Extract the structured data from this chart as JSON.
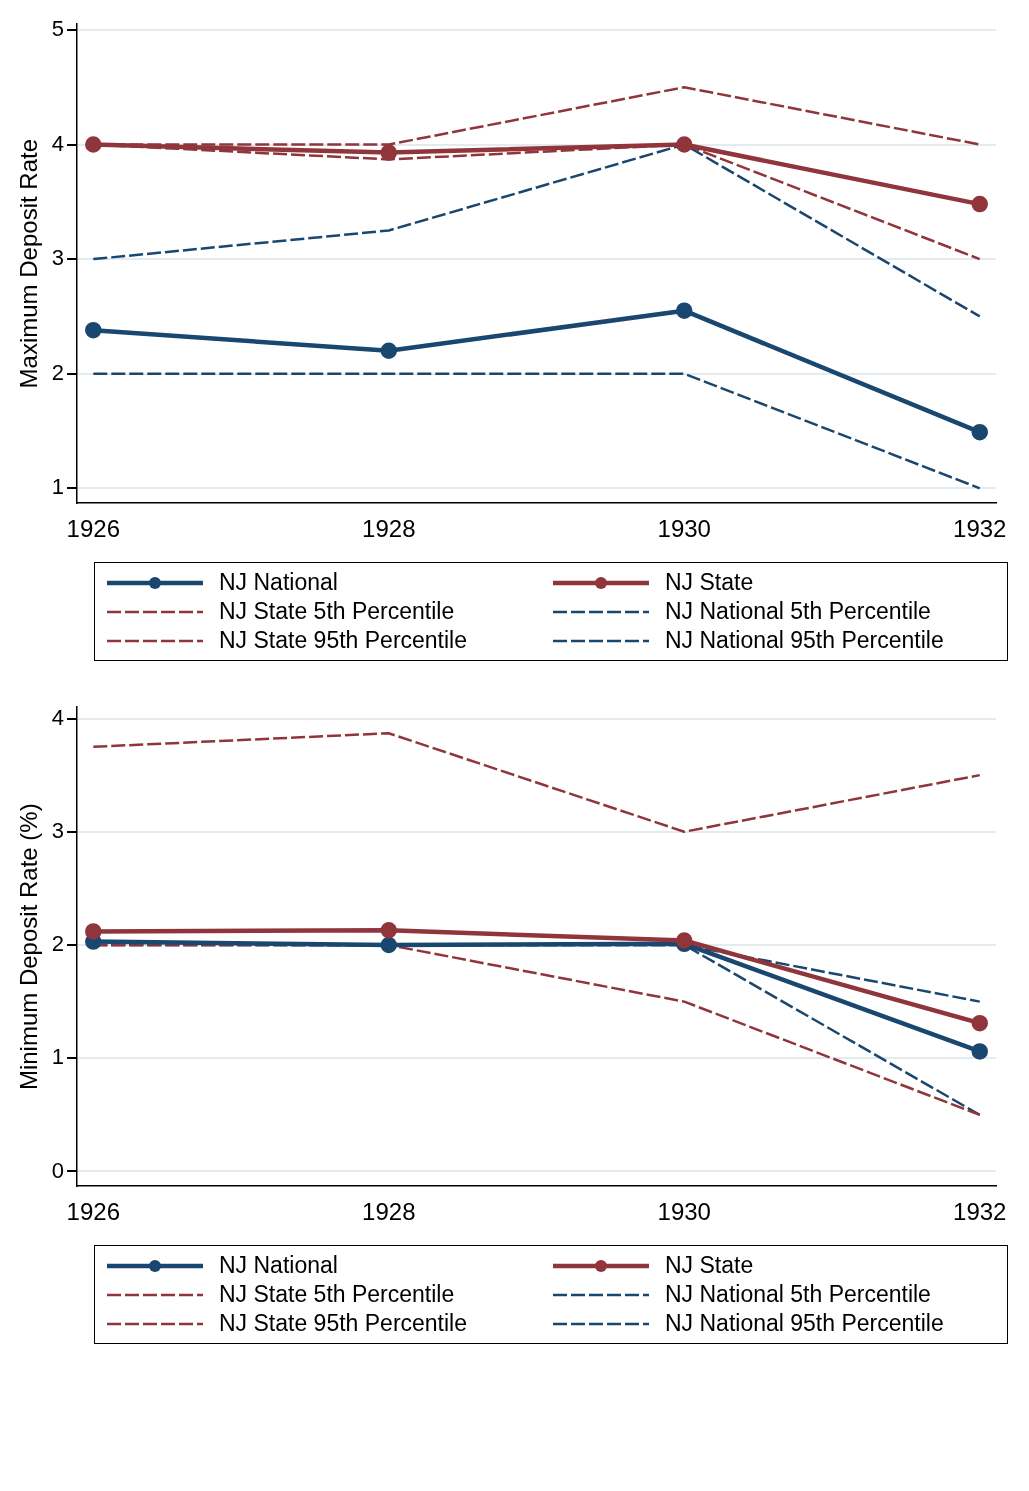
{
  "chart_data": [
    {
      "type": "line",
      "ylabel": "Maximum Deposit Rate",
      "x": [
        1926,
        1928,
        1930,
        1932
      ],
      "xlim": [
        1925.89,
        1932.11
      ],
      "xticks": [
        1926,
        1928,
        1930,
        1932
      ],
      "ylim": [
        0.87,
        5.05
      ],
      "yticks": [
        1,
        2,
        3,
        4,
        5
      ],
      "grid": "y",
      "legend": "bottom",
      "series": [
        {
          "name": "NJ National",
          "color": "#1a476f",
          "values": [
            2.38,
            2.2,
            2.55,
            1.49
          ],
          "marker": "circle",
          "line_style": "solid"
        },
        {
          "name": "NJ State",
          "color": "#90353b",
          "values": [
            4.0,
            3.93,
            4.0,
            3.48
          ],
          "marker": "circle",
          "line_style": "solid"
        },
        {
          "name": "NJ State 5th Percentile",
          "color": "#90353b",
          "values": [
            4.0,
            3.87,
            4.0,
            3.0
          ],
          "marker": "none",
          "line_style": "dashed"
        },
        {
          "name": "NJ National 5th Percentile",
          "color": "#1a476f",
          "values": [
            2.0,
            2.0,
            2.0,
            1.0
          ],
          "marker": "none",
          "line_style": "dashed"
        },
        {
          "name": "NJ State 95th Percentile",
          "color": "#90353b",
          "values": [
            4.0,
            4.0,
            4.5,
            4.0
          ],
          "marker": "none",
          "line_style": "dashed"
        },
        {
          "name": "NJ National 95th Percentile",
          "color": "#1a476f",
          "values": [
            3.0,
            3.25,
            4.0,
            2.5
          ],
          "marker": "none",
          "line_style": "dashed"
        }
      ]
    },
    {
      "type": "line",
      "ylabel": "Minimum Deposit Rate (%)",
      "x": [
        1926,
        1928,
        1930,
        1932
      ],
      "xlim": [
        1925.89,
        1932.11
      ],
      "xticks": [
        1926,
        1928,
        1930,
        1932
      ],
      "ylim": [
        -0.13,
        4.1
      ],
      "yticks": [
        0,
        1,
        2,
        3,
        4
      ],
      "grid": "y",
      "legend": "bottom",
      "series": [
        {
          "name": "NJ National",
          "color": "#1a476f",
          "values": [
            2.03,
            2.0,
            2.01,
            1.06
          ],
          "marker": "circle",
          "line_style": "solid"
        },
        {
          "name": "NJ State",
          "color": "#90353b",
          "values": [
            2.12,
            2.13,
            2.04,
            1.31
          ],
          "marker": "circle",
          "line_style": "solid"
        },
        {
          "name": "NJ State 5th Percentile",
          "color": "#90353b",
          "values": [
            2.0,
            2.0,
            1.5,
            0.5
          ],
          "marker": "none",
          "line_style": "dashed"
        },
        {
          "name": "NJ National 5th Percentile",
          "color": "#1a476f",
          "values": [
            2.0,
            2.0,
            2.0,
            0.5
          ],
          "marker": "none",
          "line_style": "dashed"
        },
        {
          "name": "NJ State 95th Percentile",
          "color": "#90353b",
          "values": [
            3.75,
            3.87,
            3.0,
            3.5
          ],
          "marker": "none",
          "line_style": "dashed"
        },
        {
          "name": "NJ National 95th Percentile",
          "color": "#1a476f",
          "values": [
            2.0,
            2.0,
            2.0,
            1.5
          ],
          "marker": "none",
          "line_style": "dashed"
        }
      ]
    }
  ]
}
